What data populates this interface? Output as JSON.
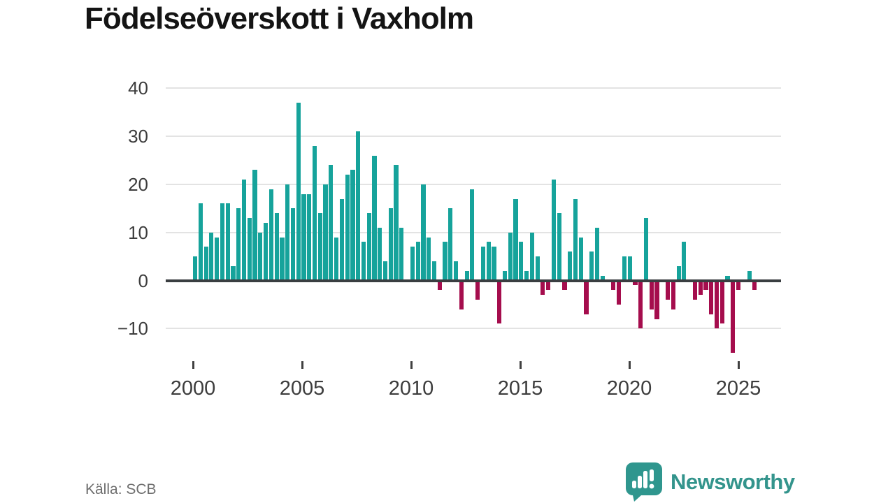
{
  "title": "Födelseöverskott i Vaxholm",
  "source": {
    "text": "Källa: SCB"
  },
  "brand": {
    "name": "Newsworthy"
  },
  "colors": {
    "positive": "#16a39b",
    "negative": "#a50d4d",
    "zero_line": "#3a3e41",
    "gridline": "#e3e3e3",
    "axis_text": "#3d3d3d",
    "title_text": "#141414",
    "source_text": "#6e6e6e",
    "brand_teal": "#33948c"
  },
  "chart_data": {
    "type": "bar",
    "title": "Födelseöverskott i Vaxholm",
    "xlabel": "",
    "ylabel": "",
    "frequency": "quarterly",
    "grid": "horizontal",
    "legend": "none",
    "ylim": [
      -16,
      42
    ],
    "y_ticks": [
      {
        "label": "40",
        "value": 40
      },
      {
        "label": "30",
        "value": 30
      },
      {
        "label": "20",
        "value": 20
      },
      {
        "label": "10",
        "value": 10
      },
      {
        "label": "0",
        "value": 0
      },
      {
        "label": "−10",
        "value": -10
      }
    ],
    "x_tick_labels": [
      "2000",
      "2005",
      "2010",
      "2015",
      "2020",
      "2025"
    ],
    "series": [
      {
        "year": 2000,
        "values": [
          5,
          16,
          7,
          10
        ]
      },
      {
        "year": 2001,
        "values": [
          9,
          16,
          16,
          3
        ]
      },
      {
        "year": 2002,
        "values": [
          15,
          21,
          13,
          23
        ]
      },
      {
        "year": 2003,
        "values": [
          10,
          12,
          19,
          14
        ]
      },
      {
        "year": 2004,
        "values": [
          9,
          20,
          15,
          37
        ]
      },
      {
        "year": 2005,
        "values": [
          18,
          18,
          28,
          14
        ]
      },
      {
        "year": 2006,
        "values": [
          20,
          24,
          9,
          17
        ]
      },
      {
        "year": 2007,
        "values": [
          22,
          23,
          31,
          8
        ]
      },
      {
        "year": 2008,
        "values": [
          14,
          26,
          11,
          4
        ]
      },
      {
        "year": 2009,
        "values": [
          15,
          24,
          11,
          0
        ]
      },
      {
        "year": 2010,
        "values": [
          7,
          8,
          20,
          9
        ]
      },
      {
        "year": 2011,
        "values": [
          4,
          -2,
          8,
          15
        ]
      },
      {
        "year": 2012,
        "values": [
          4,
          -6,
          2,
          19
        ]
      },
      {
        "year": 2013,
        "values": [
          -4,
          7,
          8,
          7
        ]
      },
      {
        "year": 2014,
        "values": [
          -9,
          2,
          10,
          17
        ]
      },
      {
        "year": 2015,
        "values": [
          8,
          2,
          10,
          5
        ]
      },
      {
        "year": 2016,
        "values": [
          -3,
          -2,
          21,
          14
        ]
      },
      {
        "year": 2017,
        "values": [
          -2,
          6,
          17,
          9
        ]
      },
      {
        "year": 2018,
        "values": [
          -7,
          6,
          11,
          1
        ]
      },
      {
        "year": 2019,
        "values": [
          0,
          -2,
          -5,
          5
        ]
      },
      {
        "year": 2020,
        "values": [
          5,
          -1,
          -10,
          13
        ]
      },
      {
        "year": 2021,
        "values": [
          -6,
          -8,
          0,
          -4
        ]
      },
      {
        "year": 2022,
        "values": [
          -6,
          3,
          8,
          0
        ]
      },
      {
        "year": 2023,
        "values": [
          -4,
          -3,
          -2,
          -7
        ]
      },
      {
        "year": 2024,
        "values": [
          -10,
          -9,
          1,
          -15
        ]
      },
      {
        "year": 2025,
        "values": [
          -2,
          0,
          2,
          -2
        ]
      }
    ]
  }
}
